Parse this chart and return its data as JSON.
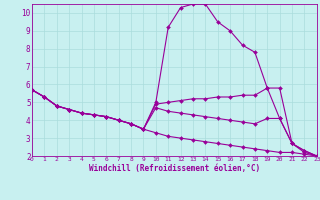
{
  "background_color": "#c8f0f0",
  "line_color": "#990099",
  "marker_color": "#990099",
  "xlabel": "Windchill (Refroidissement éolien,°C)",
  "xlim": [
    0,
    23
  ],
  "ylim": [
    2,
    10.5
  ],
  "yticks": [
    2,
    3,
    4,
    5,
    6,
    7,
    8,
    9,
    10
  ],
  "xticks": [
    0,
    1,
    2,
    3,
    4,
    5,
    6,
    7,
    8,
    9,
    10,
    11,
    12,
    13,
    14,
    15,
    16,
    17,
    18,
    19,
    20,
    21,
    22,
    23
  ],
  "grid_color": "#aadddd",
  "curves": [
    {
      "x": [
        0,
        1,
        2,
        3,
        4,
        5,
        6,
        7,
        8,
        9,
        10,
        11,
        12,
        13,
        14,
        15,
        16,
        17,
        18,
        19,
        20,
        21,
        22,
        23
      ],
      "y": [
        5.7,
        5.3,
        4.8,
        4.6,
        4.4,
        4.3,
        4.2,
        4.0,
        3.8,
        3.5,
        5.0,
        9.2,
        10.3,
        10.5,
        10.5,
        9.5,
        9.0,
        8.2,
        7.8,
        5.8,
        5.8,
        2.7,
        2.2,
        2.0
      ]
    },
    {
      "x": [
        0,
        1,
        2,
        3,
        4,
        5,
        6,
        7,
        8,
        9,
        10,
        11,
        12,
        13,
        14,
        15,
        16,
        17,
        18,
        19,
        20,
        21,
        22,
        23
      ],
      "y": [
        5.7,
        5.3,
        4.8,
        4.6,
        4.4,
        4.3,
        4.2,
        4.0,
        3.8,
        3.5,
        4.9,
        5.0,
        5.1,
        5.2,
        5.2,
        5.3,
        5.3,
        5.4,
        5.4,
        5.8,
        4.1,
        2.7,
        2.3,
        2.0
      ]
    },
    {
      "x": [
        0,
        1,
        2,
        3,
        4,
        5,
        6,
        7,
        8,
        9,
        10,
        11,
        12,
        13,
        14,
        15,
        16,
        17,
        18,
        19,
        20,
        21,
        22,
        23
      ],
      "y": [
        5.7,
        5.3,
        4.8,
        4.6,
        4.4,
        4.3,
        4.2,
        4.0,
        3.8,
        3.5,
        4.7,
        4.5,
        4.4,
        4.3,
        4.2,
        4.1,
        4.0,
        3.9,
        3.8,
        4.1,
        4.1,
        2.7,
        2.3,
        2.0
      ]
    },
    {
      "x": [
        0,
        1,
        2,
        3,
        4,
        5,
        6,
        7,
        8,
        9,
        10,
        11,
        12,
        13,
        14,
        15,
        16,
        17,
        18,
        19,
        20,
        21,
        22,
        23
      ],
      "y": [
        5.7,
        5.3,
        4.8,
        4.6,
        4.4,
        4.3,
        4.2,
        4.0,
        3.8,
        3.5,
        3.3,
        3.1,
        3.0,
        2.9,
        2.8,
        2.7,
        2.6,
        2.5,
        2.4,
        2.3,
        2.2,
        2.2,
        2.1,
        2.0
      ]
    }
  ]
}
